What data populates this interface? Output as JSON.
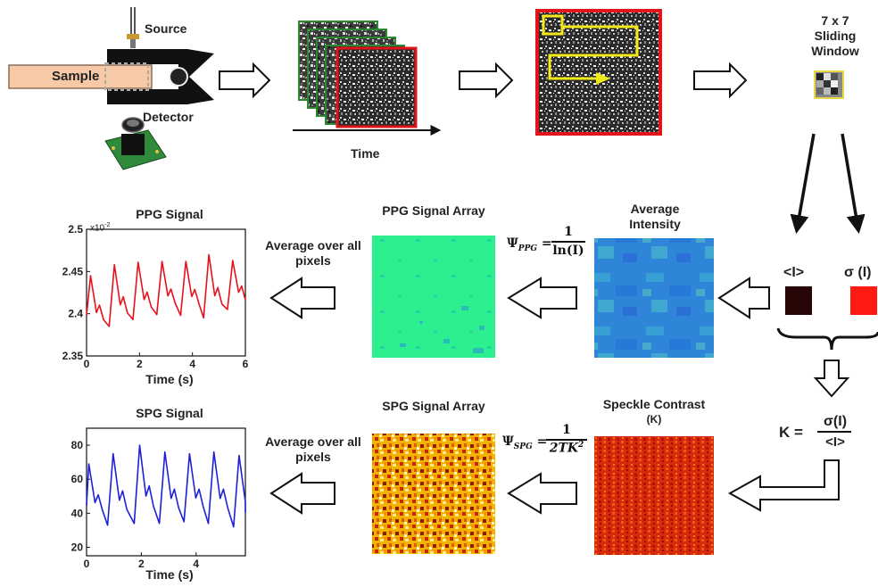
{
  "setup": {
    "source_label": "Source",
    "sample_label": "Sample",
    "detector_label": "Detector",
    "time_label": "Time"
  },
  "window": {
    "title_line1": "7 x 7",
    "title_line2": "Sliding",
    "title_line3": "Window"
  },
  "stats": {
    "mean_label": "<I>",
    "std_label": "σ (I)",
    "mean_color": "#2a0506",
    "std_color": "#ff1a12",
    "k_formula_lhs": "K =",
    "k_formula_num": "σ(I)",
    "k_formula_den": "<I>"
  },
  "ppg_row": {
    "avg_intensity_line1": "Average",
    "avg_intensity_line2": "Intensity",
    "psi_lhs": "Ψ",
    "psi_sub": "PPG",
    "psi_num": "1",
    "psi_den": "ln(I)",
    "array_title": "PPG Signal Array",
    "avg_text_line1": "Average over all",
    "avg_text_line2": "pixels"
  },
  "spg_row": {
    "speckle_line1": "Speckle Contrast",
    "speckle_line2": "(K)",
    "psi_lhs": "Ψ",
    "psi_sub": "SPG",
    "psi_num": "1",
    "psi_den": "2TK",
    "psi_den_sup": "2",
    "array_title": "SPG Signal Array",
    "avg_text_line1": "Average over all",
    "avg_text_line2": "pixels"
  },
  "chart_data": [
    {
      "type": "line",
      "title": "PPG Signal",
      "xlabel": "Time (s)",
      "ylabel": "",
      "y_multiplier": "x10",
      "y_multiplier_exp": "-2",
      "xlim": [
        0,
        6
      ],
      "ylim": [
        2.35,
        2.5
      ],
      "xticks": [
        "0",
        "2",
        "4",
        "6"
      ],
      "yticks": [
        "2.35",
        "2.4",
        "2.45",
        "2.5"
      ],
      "line_color": "#e8111b",
      "peak_times": [
        0.15,
        1.05,
        1.95,
        2.85,
        3.75,
        4.62,
        5.52
      ],
      "peak_values": [
        2.445,
        2.458,
        2.461,
        2.462,
        2.462,
        2.47,
        2.463
      ],
      "trough_values": [
        2.378,
        2.385,
        2.393,
        2.399,
        2.398,
        2.395,
        2.405
      ],
      "grid": false
    },
    {
      "type": "line",
      "title": "SPG Signal",
      "xlabel": "Time (s)",
      "ylabel": "",
      "xlim": [
        0,
        5.8
      ],
      "ylim": [
        15,
        90
      ],
      "xticks": [
        "0",
        "2",
        "4"
      ],
      "yticks": [
        "20",
        "40",
        "60",
        "80"
      ],
      "line_color": "#1d20d8",
      "peak_times": [
        0.08,
        0.97,
        1.94,
        2.86,
        3.76,
        4.65,
        5.57
      ],
      "peak_values": [
        69,
        75,
        80,
        76,
        75,
        76,
        74
      ],
      "trough_values": [
        34,
        33,
        34,
        34,
        35,
        34,
        32
      ],
      "grid": false
    }
  ]
}
